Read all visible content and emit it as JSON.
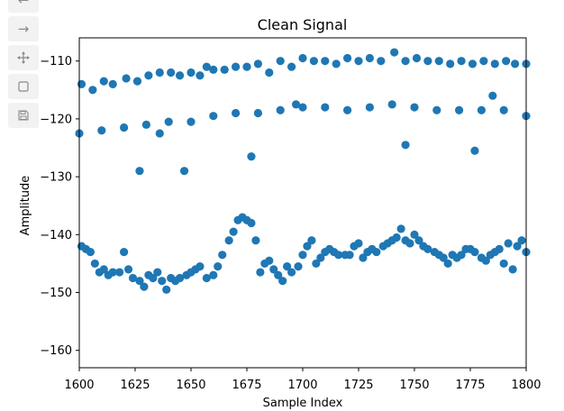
{
  "toolbar": {
    "buttons": [
      {
        "icon": "back-arrow-icon"
      },
      {
        "icon": "forward-arrow-icon"
      },
      {
        "icon": "pan-icon"
      },
      {
        "icon": "zoom-rect-icon"
      },
      {
        "icon": "save-icon"
      }
    ]
  },
  "chart_data": {
    "type": "scatter",
    "title": "Clean Signal",
    "xlabel": "Sample Index",
    "ylabel": "Amplitude",
    "xlim": [
      1600,
      1800
    ],
    "ylim": [
      -163,
      -106
    ],
    "xticks": [
      1600,
      1625,
      1650,
      1675,
      1700,
      1725,
      1750,
      1775,
      1800
    ],
    "yticks": [
      -160,
      -150,
      -140,
      -130,
      -120,
      -110
    ],
    "marker_color": "#1f77b4",
    "grid": false,
    "series": [
      {
        "values": [
          [
            1601,
            -114
          ],
          [
            1606,
            -115
          ],
          [
            1611,
            -113.5
          ],
          [
            1615,
            -114
          ],
          [
            1621,
            -113
          ],
          [
            1626,
            -113.5
          ],
          [
            1631,
            -112.5
          ],
          [
            1636,
            -112
          ],
          [
            1641,
            -112
          ],
          [
            1645,
            -112.5
          ],
          [
            1650,
            -112
          ],
          [
            1654,
            -112.5
          ],
          [
            1657,
            -111
          ],
          [
            1660,
            -111.5
          ],
          [
            1665,
            -111.5
          ],
          [
            1670,
            -111
          ],
          [
            1675,
            -111
          ],
          [
            1680,
            -110.5
          ],
          [
            1685,
            -112
          ],
          [
            1690,
            -110
          ],
          [
            1695,
            -111
          ],
          [
            1700,
            -109.5
          ],
          [
            1705,
            -110
          ],
          [
            1710,
            -110
          ],
          [
            1715,
            -110.5
          ],
          [
            1720,
            -109.5
          ],
          [
            1725,
            -110
          ],
          [
            1730,
            -109.5
          ],
          [
            1735,
            -110
          ],
          [
            1741,
            -108.5
          ],
          [
            1746,
            -110
          ],
          [
            1751,
            -109.5
          ],
          [
            1756,
            -110
          ],
          [
            1761,
            -110
          ],
          [
            1766,
            -110.5
          ],
          [
            1771,
            -110
          ],
          [
            1776,
            -110.5
          ],
          [
            1781,
            -110
          ],
          [
            1786,
            -110.5
          ],
          [
            1791,
            -110
          ],
          [
            1795,
            -110.5
          ],
          [
            1800,
            -110.5
          ],
          [
            1600,
            -122.5
          ],
          [
            1610,
            -122
          ],
          [
            1620,
            -121.5
          ],
          [
            1630,
            -121
          ],
          [
            1636,
            -122.5
          ],
          [
            1640,
            -120.5
          ],
          [
            1650,
            -120.5
          ],
          [
            1660,
            -119.5
          ],
          [
            1670,
            -119
          ],
          [
            1680,
            -119
          ],
          [
            1690,
            -118.5
          ],
          [
            1697,
            -117.5
          ],
          [
            1700,
            -118
          ],
          [
            1710,
            -118
          ],
          [
            1720,
            -118.5
          ],
          [
            1730,
            -118
          ],
          [
            1740,
            -117.5
          ],
          [
            1750,
            -118
          ],
          [
            1760,
            -118.5
          ],
          [
            1770,
            -118.5
          ],
          [
            1780,
            -118.5
          ],
          [
            1785,
            -116
          ],
          [
            1790,
            -118.5
          ],
          [
            1800,
            -119.5
          ],
          [
            1627,
            -129
          ],
          [
            1647,
            -129
          ],
          [
            1677,
            -126.5
          ],
          [
            1746,
            -124.5
          ],
          [
            1777,
            -125.5
          ],
          [
            1601,
            -142
          ],
          [
            1603,
            -142.5
          ],
          [
            1605,
            -143
          ],
          [
            1607,
            -145
          ],
          [
            1609,
            -146.5
          ],
          [
            1611,
            -146
          ],
          [
            1613,
            -147
          ],
          [
            1615,
            -146.5
          ],
          [
            1618,
            -146.5
          ],
          [
            1620,
            -143
          ],
          [
            1622,
            -146
          ],
          [
            1624,
            -147.5
          ],
          [
            1627,
            -148
          ],
          [
            1629,
            -149
          ],
          [
            1631,
            -147
          ],
          [
            1633,
            -147.5
          ],
          [
            1635,
            -146.5
          ],
          [
            1637,
            -148
          ],
          [
            1639,
            -149.5
          ],
          [
            1641,
            -147.5
          ],
          [
            1643,
            -148
          ],
          [
            1645,
            -147.5
          ],
          [
            1648,
            -147
          ],
          [
            1650,
            -146.5
          ],
          [
            1652,
            -146
          ],
          [
            1654,
            -145.5
          ],
          [
            1657,
            -147.5
          ],
          [
            1660,
            -147
          ],
          [
            1662,
            -145.5
          ],
          [
            1664,
            -143.5
          ],
          [
            1667,
            -141
          ],
          [
            1669,
            -139.5
          ],
          [
            1671,
            -137.5
          ],
          [
            1673,
            -137
          ],
          [
            1675,
            -137.5
          ],
          [
            1677,
            -138
          ],
          [
            1679,
            -141
          ],
          [
            1681,
            -146.5
          ],
          [
            1683,
            -145
          ],
          [
            1685,
            -144.5
          ],
          [
            1687,
            -146
          ],
          [
            1689,
            -147
          ],
          [
            1691,
            -148
          ],
          [
            1693,
            -145.5
          ],
          [
            1695,
            -146.5
          ],
          [
            1698,
            -145.5
          ],
          [
            1700,
            -143.5
          ],
          [
            1702,
            -142
          ],
          [
            1704,
            -141
          ],
          [
            1706,
            -145
          ],
          [
            1708,
            -144
          ],
          [
            1710,
            -143
          ],
          [
            1712,
            -142.5
          ],
          [
            1714,
            -143
          ],
          [
            1716,
            -143.5
          ],
          [
            1719,
            -143.5
          ],
          [
            1721,
            -143.5
          ],
          [
            1723,
            -142
          ],
          [
            1725,
            -141.5
          ],
          [
            1727,
            -144
          ],
          [
            1729,
            -143
          ],
          [
            1731,
            -142.5
          ],
          [
            1733,
            -143
          ],
          [
            1736,
            -142
          ],
          [
            1738,
            -141.5
          ],
          [
            1740,
            -141
          ],
          [
            1742,
            -140.5
          ],
          [
            1744,
            -139
          ],
          [
            1746,
            -141
          ],
          [
            1748,
            -141.5
          ],
          [
            1750,
            -140
          ],
          [
            1752,
            -141
          ],
          [
            1754,
            -142
          ],
          [
            1756,
            -142.5
          ],
          [
            1759,
            -143
          ],
          [
            1761,
            -143.5
          ],
          [
            1763,
            -144
          ],
          [
            1765,
            -145
          ],
          [
            1767,
            -143.5
          ],
          [
            1769,
            -144
          ],
          [
            1771,
            -143.5
          ],
          [
            1773,
            -142.5
          ],
          [
            1775,
            -142.5
          ],
          [
            1777,
            -143
          ],
          [
            1780,
            -144
          ],
          [
            1782,
            -144.5
          ],
          [
            1784,
            -143.5
          ],
          [
            1786,
            -143
          ],
          [
            1788,
            -142.5
          ],
          [
            1790,
            -145
          ],
          [
            1792,
            -141.5
          ],
          [
            1794,
            -146
          ],
          [
            1796,
            -142
          ],
          [
            1798,
            -141
          ],
          [
            1800,
            -143
          ]
        ]
      }
    ]
  }
}
